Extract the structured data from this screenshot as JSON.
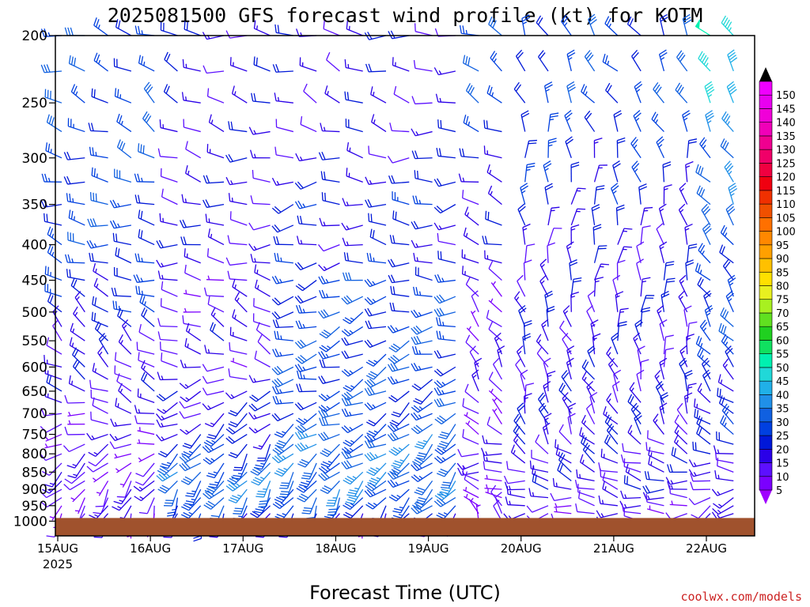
{
  "chart_data": {
    "type": "wind-barb-time-height",
    "title": "2025081500 GFS forecast wind profile (kt) for KOTM",
    "xlabel": "Forecast Time (UTC)",
    "credit": "coolwx.com/models",
    "x_ticks": [
      "15AUG",
      "16AUG",
      "17AUG",
      "18AUG",
      "19AUG",
      "20AUG",
      "21AUG",
      "22AUG"
    ],
    "x_year": "2025",
    "x_range_days": [
      0,
      7.55
    ],
    "y_ticks": [
      200,
      250,
      300,
      350,
      400,
      450,
      500,
      550,
      600,
      650,
      700,
      750,
      800,
      850,
      900,
      950,
      1000
    ],
    "y_range_hpa": [
      200,
      1050
    ],
    "y_scale": "log-pressure",
    "barb_interval_hours": 6,
    "colorbar_ticks": [
      5,
      10,
      15,
      20,
      25,
      30,
      35,
      40,
      45,
      50,
      55,
      60,
      65,
      70,
      75,
      80,
      85,
      90,
      95,
      100,
      105,
      110,
      115,
      120,
      125,
      130,
      135,
      140,
      145,
      150
    ],
    "colorbar_colors": [
      "#7b00ff",
      "#5c10ff",
      "#2a00e8",
      "#0018d8",
      "#0040e0",
      "#1060e0",
      "#2090e8",
      "#20b0e8",
      "#20d8d8",
      "#00f0b0",
      "#10e060",
      "#20d020",
      "#60e020",
      "#a8f020",
      "#e8f020",
      "#ffe000",
      "#ffc000",
      "#ffa000",
      "#ff8800",
      "#ff7000",
      "#f05000",
      "#f03000",
      "#f00010",
      "#f00040",
      "#f00068",
      "#f00090",
      "#f000b8",
      "#f000d8",
      "#e800f0",
      "#f000ff"
    ],
    "colorbar_arrow_colors": {
      "low": "#a000ff",
      "high": "#000000"
    },
    "surface_color": "#a0522d",
    "levels_hpa": [
      200,
      225,
      250,
      275,
      300,
      325,
      350,
      375,
      400,
      425,
      450,
      475,
      500,
      525,
      550,
      575,
      600,
      625,
      650,
      675,
      700,
      725,
      750,
      775,
      800,
      825,
      850,
      875,
      900,
      925,
      950,
      975,
      1000
    ],
    "regimes": [
      {
        "start_day": 0.0,
        "end_day": 1.25,
        "profile": [
          [
            200,
            285,
            25
          ],
          [
            250,
            300,
            25
          ],
          [
            300,
            290,
            25
          ],
          [
            350,
            280,
            25
          ],
          [
            400,
            285,
            25
          ],
          [
            450,
            290,
            20
          ],
          [
            500,
            300,
            20
          ],
          [
            550,
            310,
            15
          ],
          [
            600,
            300,
            15
          ],
          [
            650,
            290,
            15
          ],
          [
            700,
            280,
            10
          ],
          [
            750,
            260,
            10
          ],
          [
            800,
            240,
            10
          ],
          [
            850,
            230,
            10
          ],
          [
            900,
            220,
            10
          ],
          [
            950,
            210,
            10
          ],
          [
            1000,
            200,
            10
          ]
        ]
      },
      {
        "start_day": 1.25,
        "end_day": 2.5,
        "profile": [
          [
            200,
            280,
            15
          ],
          [
            250,
            295,
            15
          ],
          [
            300,
            280,
            15
          ],
          [
            350,
            270,
            15
          ],
          [
            400,
            270,
            15
          ],
          [
            450,
            275,
            10
          ],
          [
            500,
            290,
            10
          ],
          [
            550,
            300,
            15
          ],
          [
            600,
            280,
            10
          ],
          [
            650,
            250,
            15
          ],
          [
            700,
            240,
            15
          ],
          [
            750,
            230,
            20
          ],
          [
            800,
            220,
            25
          ],
          [
            850,
            215,
            30
          ],
          [
            900,
            210,
            30
          ],
          [
            950,
            205,
            25
          ],
          [
            1000,
            200,
            15
          ]
        ]
      },
      {
        "start_day": 2.5,
        "end_day": 4.5,
        "profile": [
          [
            200,
            275,
            15
          ],
          [
            250,
            290,
            15
          ],
          [
            300,
            270,
            15
          ],
          [
            350,
            265,
            20
          ],
          [
            400,
            270,
            15
          ],
          [
            450,
            260,
            25
          ],
          [
            500,
            255,
            25
          ],
          [
            550,
            250,
            25
          ],
          [
            600,
            250,
            25
          ],
          [
            650,
            245,
            25
          ],
          [
            700,
            240,
            25
          ],
          [
            750,
            235,
            30
          ],
          [
            800,
            230,
            30
          ],
          [
            850,
            225,
            30
          ],
          [
            900,
            220,
            30
          ],
          [
            950,
            215,
            25
          ],
          [
            1000,
            210,
            10
          ]
        ]
      },
      {
        "start_day": 4.5,
        "end_day": 5.0,
        "profile": [
          [
            200,
            290,
            25
          ],
          [
            250,
            300,
            25
          ],
          [
            300,
            295,
            20
          ],
          [
            350,
            300,
            15
          ],
          [
            400,
            300,
            15
          ],
          [
            450,
            310,
            10
          ],
          [
            500,
            315,
            10
          ],
          [
            550,
            320,
            10
          ],
          [
            600,
            320,
            10
          ],
          [
            650,
            320,
            10
          ],
          [
            700,
            310,
            10
          ],
          [
            750,
            300,
            10
          ],
          [
            800,
            280,
            10
          ],
          [
            850,
            270,
            10
          ],
          [
            900,
            300,
            10
          ],
          [
            950,
            320,
            10
          ],
          [
            1000,
            330,
            5
          ]
        ]
      },
      {
        "start_day": 5.0,
        "end_day": 7.0,
        "profile": [
          [
            200,
            330,
            25
          ],
          [
            250,
            330,
            25
          ],
          [
            300,
            350,
            20
          ],
          [
            350,
            355,
            20
          ],
          [
            400,
            360,
            15
          ],
          [
            450,
            355,
            15
          ],
          [
            500,
            350,
            15
          ],
          [
            550,
            345,
            15
          ],
          [
            600,
            340,
            15
          ],
          [
            650,
            340,
            15
          ],
          [
            700,
            335,
            15
          ],
          [
            750,
            330,
            15
          ],
          [
            800,
            300,
            15
          ],
          [
            850,
            290,
            15
          ],
          [
            900,
            280,
            15
          ],
          [
            950,
            270,
            10
          ],
          [
            1000,
            260,
            10
          ]
        ]
      },
      {
        "start_day": 7.0,
        "end_day": 7.6,
        "profile": [
          [
            200,
            310,
            45
          ],
          [
            250,
            320,
            45
          ],
          [
            300,
            320,
            30
          ],
          [
            350,
            320,
            30
          ],
          [
            400,
            325,
            25
          ],
          [
            450,
            330,
            25
          ],
          [
            500,
            335,
            25
          ],
          [
            550,
            330,
            25
          ],
          [
            600,
            320,
            20
          ],
          [
            650,
            310,
            20
          ],
          [
            700,
            300,
            20
          ],
          [
            750,
            290,
            20
          ],
          [
            800,
            280,
            15
          ],
          [
            850,
            270,
            15
          ],
          [
            900,
            260,
            15
          ],
          [
            950,
            250,
            10
          ],
          [
            1000,
            240,
            10
          ]
        ]
      }
    ]
  }
}
